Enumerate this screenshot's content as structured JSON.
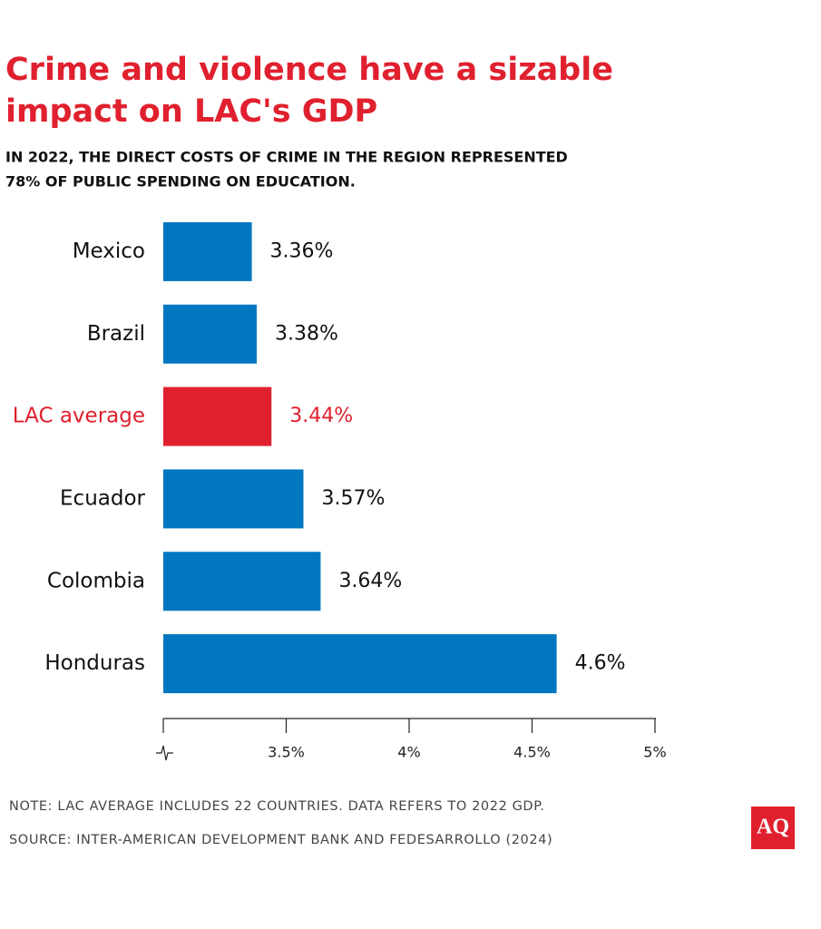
{
  "chart_data": {
    "type": "bar",
    "orientation": "horizontal",
    "title": [
      "Crime and violence have a sizable",
      "impact on LAC's GDP"
    ],
    "subtitle": [
      "IN 2022, THE DIRECT COSTS OF CRIME IN THE REGION REPRESENTED",
      "78% OF PUBLIC SPENDING ON EDUCATION."
    ],
    "categories": [
      "Mexico",
      "Brazil",
      "LAC average",
      "Ecuador",
      "Colombia",
      "Honduras"
    ],
    "values": [
      3.36,
      3.38,
      3.44,
      3.57,
      3.64,
      4.6
    ],
    "value_labels": [
      "3.36%",
      "3.38%",
      "3.44%",
      "3.57%",
      "3.64%",
      "4.6%"
    ],
    "color": "#0077c0",
    "colors": [
      "#0077c0",
      "#0077c0",
      "#e0202e",
      "#0077c0",
      "#0077c0",
      "#0077c0"
    ],
    "xlim": [
      3,
      5
    ],
    "xticks": [
      {
        "value": 3.5,
        "label": "3.5%"
      },
      {
        "value": 4,
        "label": "4%"
      },
      {
        "value": 4.5,
        "label": "4.5%"
      },
      {
        "value": 5,
        "label": "5%"
      }
    ],
    "axis_break": true,
    "note": "NOTE: LAC AVERAGE INCLUDES 22 COUNTRIES. DATA REFERS TO 2022 GDP.",
    "source": "SOURCE: INTER-AMERICAN DEVELOPMENT BANK AND FEDESARROLLO (2024)",
    "logo": "AQ"
  }
}
